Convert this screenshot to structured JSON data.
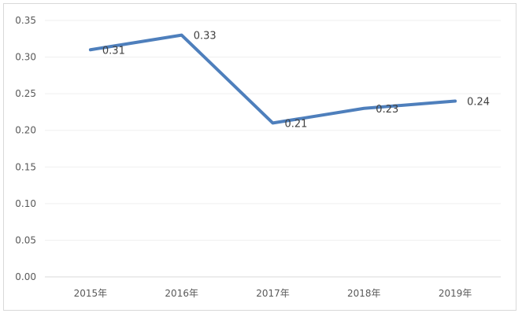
{
  "chart_data": {
    "type": "line",
    "title": "",
    "xlabel": "",
    "ylabel": "",
    "categories": [
      "2015年",
      "2016年",
      "2017年",
      "2018年",
      "2019年"
    ],
    "series": [
      {
        "values": [
          0.31,
          0.33,
          0.21,
          0.23,
          0.24
        ],
        "data_labels": [
          "0.31",
          "0.33",
          "0.21",
          "0.23",
          "0.24"
        ]
      }
    ],
    "y_ticks": [
      "0.00",
      "0.05",
      "0.10",
      "0.15",
      "0.20",
      "0.25",
      "0.30",
      "0.35"
    ],
    "ylim": [
      0,
      0.35
    ],
    "grid": true,
    "legend": "none",
    "colors": {
      "line": "#4e7fbc",
      "grid": "#efefef"
    }
  }
}
